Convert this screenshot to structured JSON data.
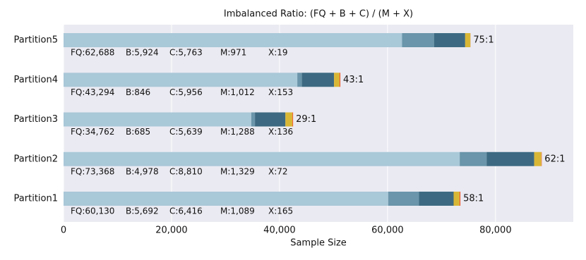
{
  "chart_data": {
    "type": "stacked-barh",
    "title": "Imbalanced Ratio: (FQ + B + C) / (M + X)",
    "xlabel": "Sample Size",
    "categories": [
      "Partition5",
      "Partition4",
      "Partition3",
      "Partition2",
      "Partition1"
    ],
    "series": [
      {
        "name": "FQ",
        "color": "#a9c8d8",
        "values": [
          62688,
          43294,
          34762,
          73368,
          60130
        ],
        "value_labels": [
          "FQ:62,688",
          "FQ:43,294",
          "FQ:34,762",
          "FQ:73,368",
          "FQ:60,130"
        ]
      },
      {
        "name": "B",
        "color": "#6a95aa",
        "values": [
          5924,
          846,
          685,
          4978,
          5692
        ],
        "value_labels": [
          "B:5,924",
          "B:846",
          "B:685",
          "B:4,978",
          "B:5,692"
        ]
      },
      {
        "name": "C",
        "color": "#3d6a82",
        "values": [
          5763,
          5956,
          5639,
          8810,
          6416
        ],
        "value_labels": [
          "C:5,763",
          "C:5,956",
          "C:5,639",
          "C:8,810",
          "C:6,416"
        ]
      },
      {
        "name": "M",
        "color": "#d9b736",
        "values": [
          971,
          1012,
          1288,
          1329,
          1089
        ],
        "value_labels": [
          "M:971",
          "M:1,012",
          "M:1,288",
          "M:1,329",
          "M:1,089"
        ]
      },
      {
        "name": "X",
        "color": "#ee5a24",
        "values": [
          19,
          153,
          136,
          72,
          165
        ],
        "value_labels": [
          "X:19",
          "X:153",
          "X:136",
          "X:72",
          "X:165"
        ]
      }
    ],
    "ratio_labels": [
      "75:1",
      "43:1",
      "29:1",
      "62:1",
      "58:1"
    ],
    "xlim": [
      0,
      94400
    ],
    "xticks": [
      0,
      {
        "value": 20000,
        "label": "20,000"
      },
      {
        "value": 40000,
        "label": "40,000"
      },
      {
        "value": 60000,
        "label": "60,000"
      },
      {
        "value": 80000,
        "label": "80,000"
      }
    ],
    "grid": true
  }
}
